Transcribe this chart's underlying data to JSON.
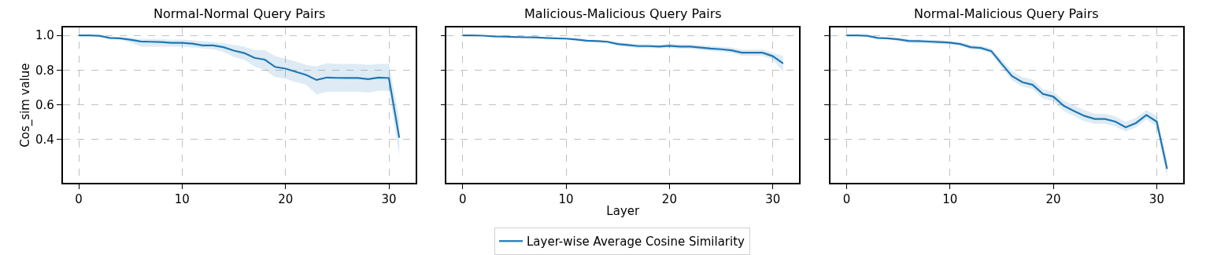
{
  "chart_data": [
    {
      "type": "line",
      "title": "Normal-Normal Query Pairs",
      "ylabel": "Cos_sim value",
      "x": [
        0,
        1,
        2,
        3,
        4,
        5,
        6,
        7,
        8,
        9,
        10,
        11,
        12,
        13,
        14,
        15,
        16,
        17,
        18,
        19,
        20,
        21,
        22,
        23,
        24,
        25,
        26,
        27,
        28,
        29,
        30,
        31
      ],
      "series": [
        {
          "color": "#1f77b4",
          "values": [
            1.0,
            1.0,
            0.997,
            0.985,
            0.983,
            0.975,
            0.965,
            0.963,
            0.961,
            0.957,
            0.957,
            0.952,
            0.942,
            0.942,
            0.932,
            0.912,
            0.898,
            0.87,
            0.86,
            0.818,
            0.808,
            0.79,
            0.772,
            0.743,
            0.757,
            0.755,
            0.754,
            0.754,
            0.748,
            0.757,
            0.754,
            0.41
          ],
          "lower": [
            1.0,
            1.0,
            0.995,
            0.98,
            0.975,
            0.96,
            0.935,
            0.935,
            0.935,
            0.935,
            0.935,
            0.93,
            0.925,
            0.92,
            0.905,
            0.875,
            0.86,
            0.82,
            0.8,
            0.76,
            0.75,
            0.73,
            0.715,
            0.66,
            0.675,
            0.675,
            0.675,
            0.675,
            0.67,
            0.68,
            0.68,
            0.31
          ],
          "upper": [
            1.0,
            1.0,
            1.0,
            0.99,
            0.99,
            0.985,
            0.98,
            0.98,
            0.978,
            0.975,
            0.975,
            0.972,
            0.965,
            0.962,
            0.955,
            0.945,
            0.935,
            0.915,
            0.915,
            0.88,
            0.865,
            0.85,
            0.83,
            0.82,
            0.84,
            0.835,
            0.835,
            0.835,
            0.83,
            0.835,
            0.835,
            0.52
          ]
        }
      ],
      "xlim": [
        -1.55,
        32.55
      ],
      "ylim": [
        0.15,
        1.045
      ],
      "xticks": [
        0,
        10,
        20,
        30
      ],
      "yticks": [
        0.4,
        0.6,
        0.8,
        {
          "value": 1.0,
          "label": "1.0"
        }
      ],
      "grid": true
    },
    {
      "type": "line",
      "title": "Malicious-Malicious Query Pairs",
      "xlabel": "Layer",
      "x": [
        0,
        1,
        2,
        3,
        4,
        5,
        6,
        7,
        8,
        9,
        10,
        11,
        12,
        13,
        14,
        15,
        16,
        17,
        18,
        19,
        20,
        21,
        22,
        23,
        24,
        25,
        26,
        27,
        28,
        29,
        30,
        31
      ],
      "series": [
        {
          "name": "Layer-wise Average Cosine Similarity",
          "color": "#1f77b4",
          "values": [
            1.0,
            1.0,
            0.998,
            0.994,
            0.993,
            0.991,
            0.989,
            0.988,
            0.985,
            0.983,
            0.981,
            0.976,
            0.969,
            0.967,
            0.963,
            0.95,
            0.944,
            0.938,
            0.938,
            0.935,
            0.94,
            0.935,
            0.935,
            0.93,
            0.924,
            0.92,
            0.914,
            0.9,
            0.9,
            0.9,
            0.88,
            0.838
          ],
          "lower": [
            1.0,
            1.0,
            0.996,
            0.991,
            0.99,
            0.988,
            0.986,
            0.985,
            0.982,
            0.979,
            0.977,
            0.97,
            0.962,
            0.96,
            0.955,
            0.94,
            0.933,
            0.927,
            0.927,
            0.924,
            0.928,
            0.922,
            0.922,
            0.917,
            0.91,
            0.905,
            0.898,
            0.882,
            0.882,
            0.882,
            0.86,
            0.79
          ],
          "upper": [
            1.0,
            1.0,
            1.0,
            0.997,
            0.996,
            0.994,
            0.992,
            0.991,
            0.988,
            0.987,
            0.985,
            0.982,
            0.976,
            0.974,
            0.971,
            0.96,
            0.955,
            0.949,
            0.949,
            0.946,
            0.952,
            0.948,
            0.948,
            0.943,
            0.938,
            0.935,
            0.93,
            0.918,
            0.918,
            0.918,
            0.9,
            0.88
          ]
        }
      ],
      "xlim": [
        -1.55,
        32.55
      ],
      "ylim": [
        0.15,
        1.045
      ],
      "xticks": [
        0,
        10,
        20,
        30
      ],
      "yticks": [
        0.4,
        0.6,
        0.8,
        1.0
      ],
      "grid": true,
      "legend": "bottom",
      "tick_labels": "x"
    },
    {
      "type": "line",
      "title": "Normal-Malicious Query Pairs",
      "x": [
        0,
        1,
        2,
        3,
        4,
        5,
        6,
        7,
        8,
        9,
        10,
        11,
        12,
        13,
        14,
        15,
        16,
        17,
        18,
        19,
        20,
        21,
        22,
        23,
        24,
        25,
        26,
        27,
        28,
        29,
        30,
        31
      ],
      "series": [
        {
          "color": "#1f77b4",
          "values": [
            1.0,
            1.0,
            0.997,
            0.985,
            0.983,
            0.977,
            0.968,
            0.967,
            0.964,
            0.961,
            0.958,
            0.95,
            0.932,
            0.927,
            0.909,
            0.836,
            0.765,
            0.73,
            0.715,
            0.662,
            0.647,
            0.594,
            0.564,
            0.536,
            0.518,
            0.518,
            0.503,
            0.47,
            0.495,
            0.541,
            0.503,
            0.23
          ],
          "lower": [
            1.0,
            1.0,
            0.994,
            0.98,
            0.977,
            0.968,
            0.955,
            0.955,
            0.952,
            0.95,
            0.948,
            0.94,
            0.92,
            0.915,
            0.895,
            0.815,
            0.74,
            0.705,
            0.69,
            0.635,
            0.62,
            0.565,
            0.535,
            0.505,
            0.49,
            0.49,
            0.475,
            0.445,
            0.47,
            0.515,
            0.475,
            0.18
          ],
          "upper": [
            1.0,
            1.0,
            1.0,
            0.99,
            0.988,
            0.985,
            0.978,
            0.977,
            0.974,
            0.972,
            0.968,
            0.96,
            0.945,
            0.94,
            0.925,
            0.86,
            0.795,
            0.76,
            0.745,
            0.69,
            0.675,
            0.625,
            0.595,
            0.57,
            0.548,
            0.548,
            0.533,
            0.5,
            0.525,
            0.57,
            0.535,
            0.28
          ]
        }
      ],
      "xlim": [
        -1.55,
        32.55
      ],
      "ylim": [
        0.15,
        1.045
      ],
      "xticks": [
        0,
        10,
        20,
        30
      ],
      "yticks": [
        0.4,
        0.6,
        0.8,
        1.0
      ],
      "grid": true,
      "tick_labels": "x"
    }
  ]
}
